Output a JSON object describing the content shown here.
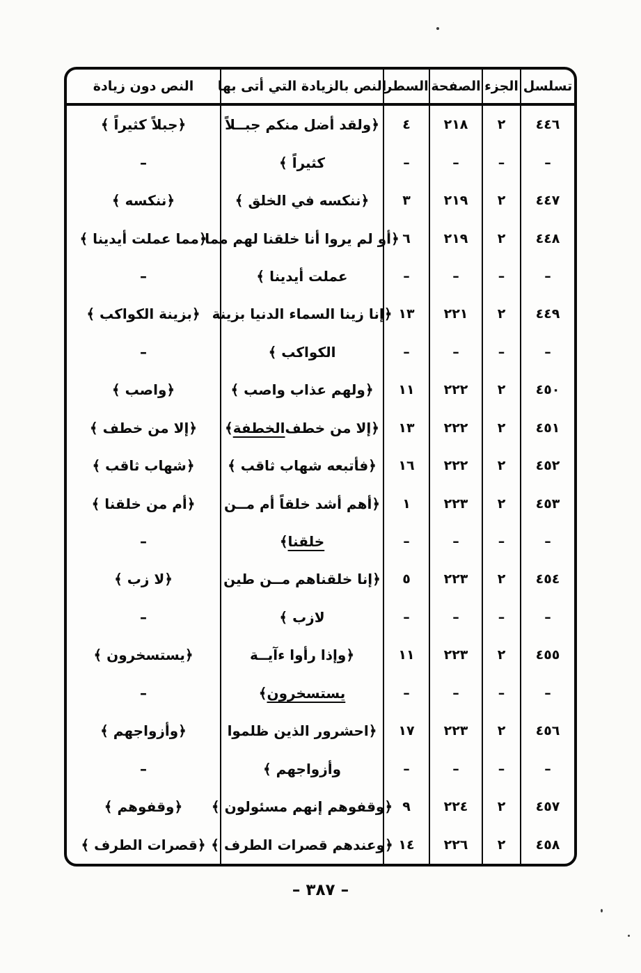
{
  "page": {
    "ink_color": "#0a0a0a",
    "paper_color": "#fbfbf9",
    "footer_page_number": "– ٣٨٧ –"
  },
  "table": {
    "headers": [
      {
        "key": "serial",
        "label": "تسلسل"
      },
      {
        "key": "part",
        "label": "الجزء"
      },
      {
        "key": "page",
        "label": "الصفحة"
      },
      {
        "key": "line",
        "label": "السطر"
      },
      {
        "key": "text_with",
        "label": "النص بالزيادة التي أتى بها"
      },
      {
        "key": "text_without",
        "label": "النص دون زيادة"
      }
    ],
    "rows": [
      {
        "serial": "٤٤٦",
        "part": "٢",
        "page": "٢١٨",
        "line": "٤",
        "text_with": "﴿ولقد أضل منكم جبــلاً",
        "text_without": "﴿جبلاً كثيراً ﴾"
      },
      {
        "serial": "–",
        "part": "–",
        "page": "–",
        "line": "–",
        "text_with": "كثيراً ﴾",
        "text_without": "–"
      },
      {
        "serial": "٤٤٧",
        "part": "٢",
        "page": "٢١٩",
        "line": "٣",
        "text_with": "﴿ننكسه في الخلق ﴾",
        "text_without": "﴿ننكسه ﴾"
      },
      {
        "serial": "٤٤٨",
        "part": "٢",
        "page": "٢١٩",
        "line": "٦",
        "text_with": "﴿أو لم يروا أنا خلقنا لهم مما",
        "text_without": "﴿مما عملت أيدينا ﴾"
      },
      {
        "serial": "–",
        "part": "–",
        "page": "–",
        "line": "–",
        "text_with": "عملت أيدينا ﴾",
        "text_without": "–"
      },
      {
        "serial": "٤٤٩",
        "part": "٢",
        "page": "٢٢١",
        "line": "١٣",
        "text_with": "﴿إنا زينا السماء الدنيا بزينة",
        "text_without": "﴿بزينة الكواكب ﴾"
      },
      {
        "serial": "–",
        "part": "–",
        "page": "–",
        "line": "–",
        "text_with": "الكواكب ﴾",
        "text_without": "–"
      },
      {
        "serial": "٤٥٠",
        "part": "٢",
        "page": "٢٢٢",
        "line": "١١",
        "text_with": "﴿ولهم عذاب واصب ﴾",
        "text_without": "﴿واصب ﴾"
      },
      {
        "serial": "٤٥١",
        "part": "٢",
        "page": "٢٢٢",
        "line": "١٣",
        "text_with": [
          {
            "t": "﴿إلا من خطف "
          },
          {
            "t": "الخطفة",
            "u": true
          },
          {
            "t": " ﴾"
          }
        ],
        "text_without": "﴿إلا من خطف ﴾"
      },
      {
        "serial": "٤٥٢",
        "part": "٢",
        "page": "٢٢٢",
        "line": "١٦",
        "text_with": "﴿فأتبعه شهاب ثاقب ﴾",
        "text_without": "﴿شهاب ثاقب ﴾"
      },
      {
        "serial": "٤٥٣",
        "part": "٢",
        "page": "٢٢٣",
        "line": "١",
        "text_with": "﴿أهم أشد خلقاً أم مــن",
        "text_without": "﴿أم من خلقنا ﴾"
      },
      {
        "serial": "–",
        "part": "–",
        "page": "–",
        "line": "–",
        "text_with": [
          {
            "t": "خلقنا",
            "u": true
          },
          {
            "t": " ﴾"
          }
        ],
        "text_without": "–"
      },
      {
        "serial": "٤٥٤",
        "part": "٢",
        "page": "٢٢٣",
        "line": "٥",
        "text_with": "﴿إنا خلقناهم مــن طين",
        "text_without": "﴿لا زب ﴾"
      },
      {
        "serial": "–",
        "part": "–",
        "page": "–",
        "line": "–",
        "text_with": "لازب ﴾",
        "text_without": "–"
      },
      {
        "serial": "٤٥٥",
        "part": "٢",
        "page": "٢٢٣",
        "line": "١١",
        "text_with": "﴿وإذا رأوا ءآيــة",
        "text_without": "﴿يستسخرون ﴾"
      },
      {
        "serial": "–",
        "part": "–",
        "page": "–",
        "line": "–",
        "text_with": [
          {
            "t": "يستسخرون",
            "u": true
          },
          {
            "t": " ﴾"
          }
        ],
        "text_without": "–"
      },
      {
        "serial": "٤٥٦",
        "part": "٢",
        "page": "٢٢٣",
        "line": "١٧",
        "text_with": "﴿احشرور الذين ظلموا",
        "text_without": "﴿وأزواجهم ﴾"
      },
      {
        "serial": "–",
        "part": "–",
        "page": "–",
        "line": "–",
        "text_with": "وأزواجهم ﴾",
        "text_without": "–"
      },
      {
        "serial": "٤٥٧",
        "part": "٢",
        "page": "٢٢٤",
        "line": "٩",
        "text_with": "﴿وقفوهم إنهم مسئولون ﴾",
        "text_without": "﴿وقفوهم ﴾"
      },
      {
        "serial": "٤٥٨",
        "part": "٢",
        "page": "٢٢٦",
        "line": "١٤",
        "text_with": "﴿وعندهم قصرات الطرف ﴾",
        "text_without": "﴿قصرات الطرف ﴾"
      }
    ]
  }
}
